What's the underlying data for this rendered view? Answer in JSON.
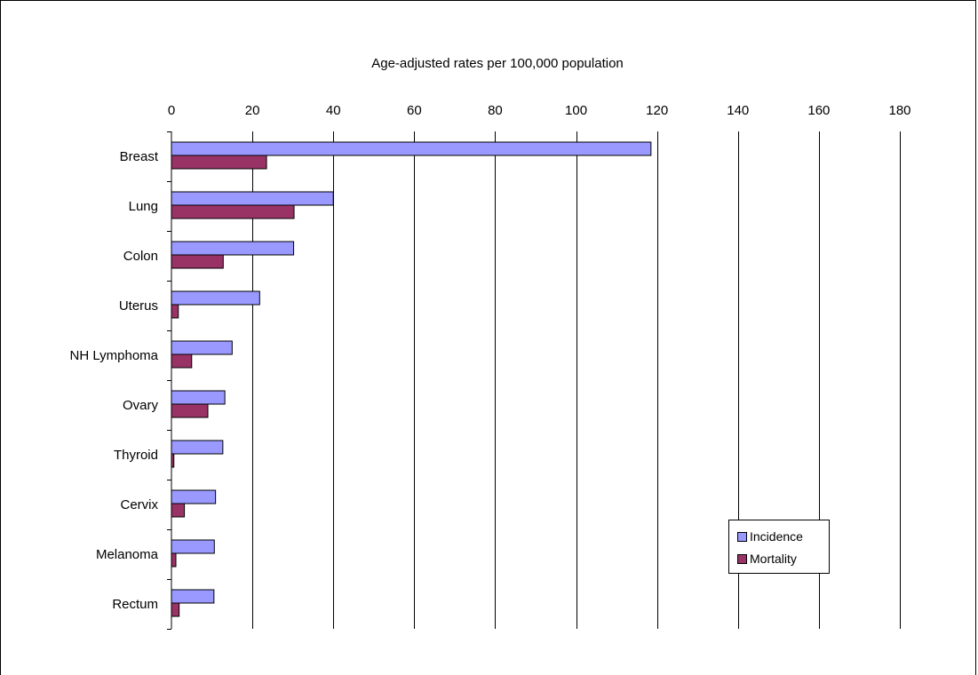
{
  "chart_data": {
    "type": "bar",
    "orientation": "horizontal",
    "title": "Age-adjusted rates per 100,000 population",
    "categories": [
      "Breast",
      "Lung",
      "Colon",
      "Uterus",
      "NH Lymphoma",
      "Ovary",
      "Thyroid",
      "Cervix",
      "Melanoma",
      "Rectum"
    ],
    "series": [
      {
        "name": "Incidence",
        "color": "#9999ff",
        "values": [
          118.5,
          40,
          30.2,
          21.8,
          15,
          13.2,
          12.7,
          10.9,
          10.6,
          10.5
        ]
      },
      {
        "name": "Mortality",
        "color": "#993366",
        "values": [
          23.5,
          30.3,
          12.8,
          1.7,
          5,
          9,
          0.6,
          3.2,
          1.1,
          1.9
        ]
      }
    ],
    "xlim": [
      0,
      180
    ],
    "xticks": [
      "0",
      "20",
      "40",
      "60",
      "80",
      "100",
      "120",
      "140",
      "160",
      "180"
    ],
    "xaxis_position": "top",
    "grid": true,
    "legend_position": "bottom-right"
  }
}
